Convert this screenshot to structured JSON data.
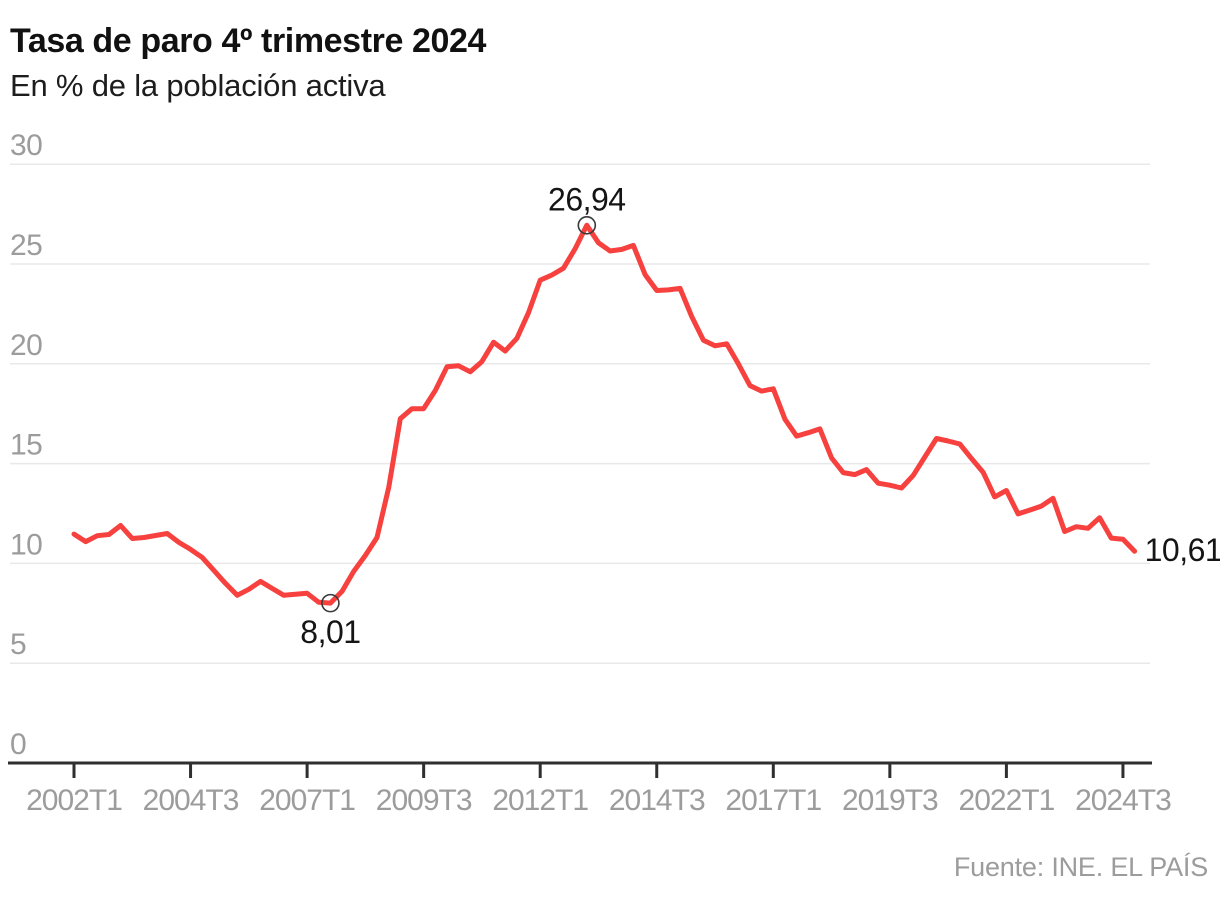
{
  "header": {
    "title": "Tasa de paro 4º trimestre 2024",
    "subtitle": "En % de la población activa"
  },
  "source": {
    "label": "Fuente: INE. EL PAÍS"
  },
  "colors": {
    "line": "#f6413e",
    "grid": "#e9e9e9",
    "axis_line": "#2f2f2f",
    "tick_labels": "#9c9c9c",
    "annotation": "#151515",
    "marker_stroke": "#3a3a3a"
  },
  "chart_data": {
    "type": "line",
    "title": "Tasa de paro 4º trimestre 2024",
    "subtitle": "En % de la población activa",
    "unit": "%",
    "ylim": [
      0,
      30
    ],
    "yticks": [
      0,
      5,
      10,
      15,
      20,
      25,
      30
    ],
    "grid": "horizontal",
    "legend": "none",
    "xticks": [
      "2002T1",
      "2004T3",
      "2007T1",
      "2009T3",
      "2012T1",
      "2014T3",
      "2017T1",
      "2019T3",
      "2022T1",
      "2024T3"
    ],
    "x": [
      "2002T1",
      "2002T2",
      "2002T3",
      "2002T4",
      "2003T1",
      "2003T2",
      "2003T3",
      "2003T4",
      "2004T1",
      "2004T2",
      "2004T3",
      "2004T4",
      "2005T1",
      "2005T2",
      "2005T3",
      "2005T4",
      "2006T1",
      "2006T2",
      "2006T3",
      "2006T4",
      "2007T1",
      "2007T2",
      "2007T3",
      "2007T4",
      "2008T1",
      "2008T2",
      "2008T3",
      "2008T4",
      "2009T1",
      "2009T2",
      "2009T3",
      "2009T4",
      "2010T1",
      "2010T2",
      "2010T3",
      "2010T4",
      "2011T1",
      "2011T2",
      "2011T3",
      "2011T4",
      "2012T1",
      "2012T2",
      "2012T3",
      "2012T4",
      "2013T1",
      "2013T2",
      "2013T3",
      "2013T4",
      "2014T1",
      "2014T2",
      "2014T3",
      "2014T4",
      "2015T1",
      "2015T2",
      "2015T3",
      "2015T4",
      "2016T1",
      "2016T2",
      "2016T3",
      "2016T4",
      "2017T1",
      "2017T2",
      "2017T3",
      "2017T4",
      "2018T1",
      "2018T2",
      "2018T3",
      "2018T4",
      "2019T1",
      "2019T2",
      "2019T3",
      "2019T4",
      "2020T1",
      "2020T2",
      "2020T3",
      "2020T4",
      "2021T1",
      "2021T2",
      "2021T3",
      "2021T4",
      "2022T1",
      "2022T2",
      "2022T3",
      "2022T4",
      "2023T1",
      "2023T2",
      "2023T3",
      "2023T4",
      "2024T1",
      "2024T2",
      "2024T3",
      "2024T4"
    ],
    "values": [
      11.47,
      11.09,
      11.39,
      11.45,
      11.9,
      11.25,
      11.3,
      11.4,
      11.5,
      11.05,
      10.7,
      10.3,
      9.65,
      9.0,
      8.4,
      8.7,
      9.1,
      8.75,
      8.4,
      8.45,
      8.5,
      8.05,
      8.01,
      8.6,
      9.6,
      10.4,
      11.3,
      13.8,
      17.25,
      17.75,
      17.75,
      18.66,
      19.85,
      19.9,
      19.6,
      20.11,
      21.08,
      20.64,
      21.28,
      22.56,
      24.19,
      24.45,
      24.79,
      25.77,
      26.94,
      26.06,
      25.65,
      25.73,
      25.93,
      24.47,
      23.67,
      23.7,
      23.78,
      22.37,
      21.18,
      20.9,
      21.0,
      20.0,
      18.91,
      18.63,
      18.75,
      17.22,
      16.38,
      16.55,
      16.74,
      15.28,
      14.55,
      14.45,
      14.7,
      14.02,
      13.92,
      13.78,
      14.41,
      15.33,
      16.26,
      16.13,
      15.98,
      15.26,
      14.57,
      13.33,
      13.65,
      12.48,
      12.67,
      12.87,
      13.26,
      11.6,
      11.84,
      11.76,
      12.29,
      11.27,
      11.21,
      10.61
    ],
    "annotations": [
      {
        "x": "2013T1",
        "value": 26.94,
        "label": "26,94",
        "marker": true,
        "position": "above"
      },
      {
        "x": "2007T3",
        "value": 8.01,
        "label": "8,01",
        "marker": true,
        "position": "below"
      },
      {
        "x": "2024T4",
        "value": 10.61,
        "label": "10,61",
        "marker": false,
        "position": "right"
      }
    ]
  }
}
